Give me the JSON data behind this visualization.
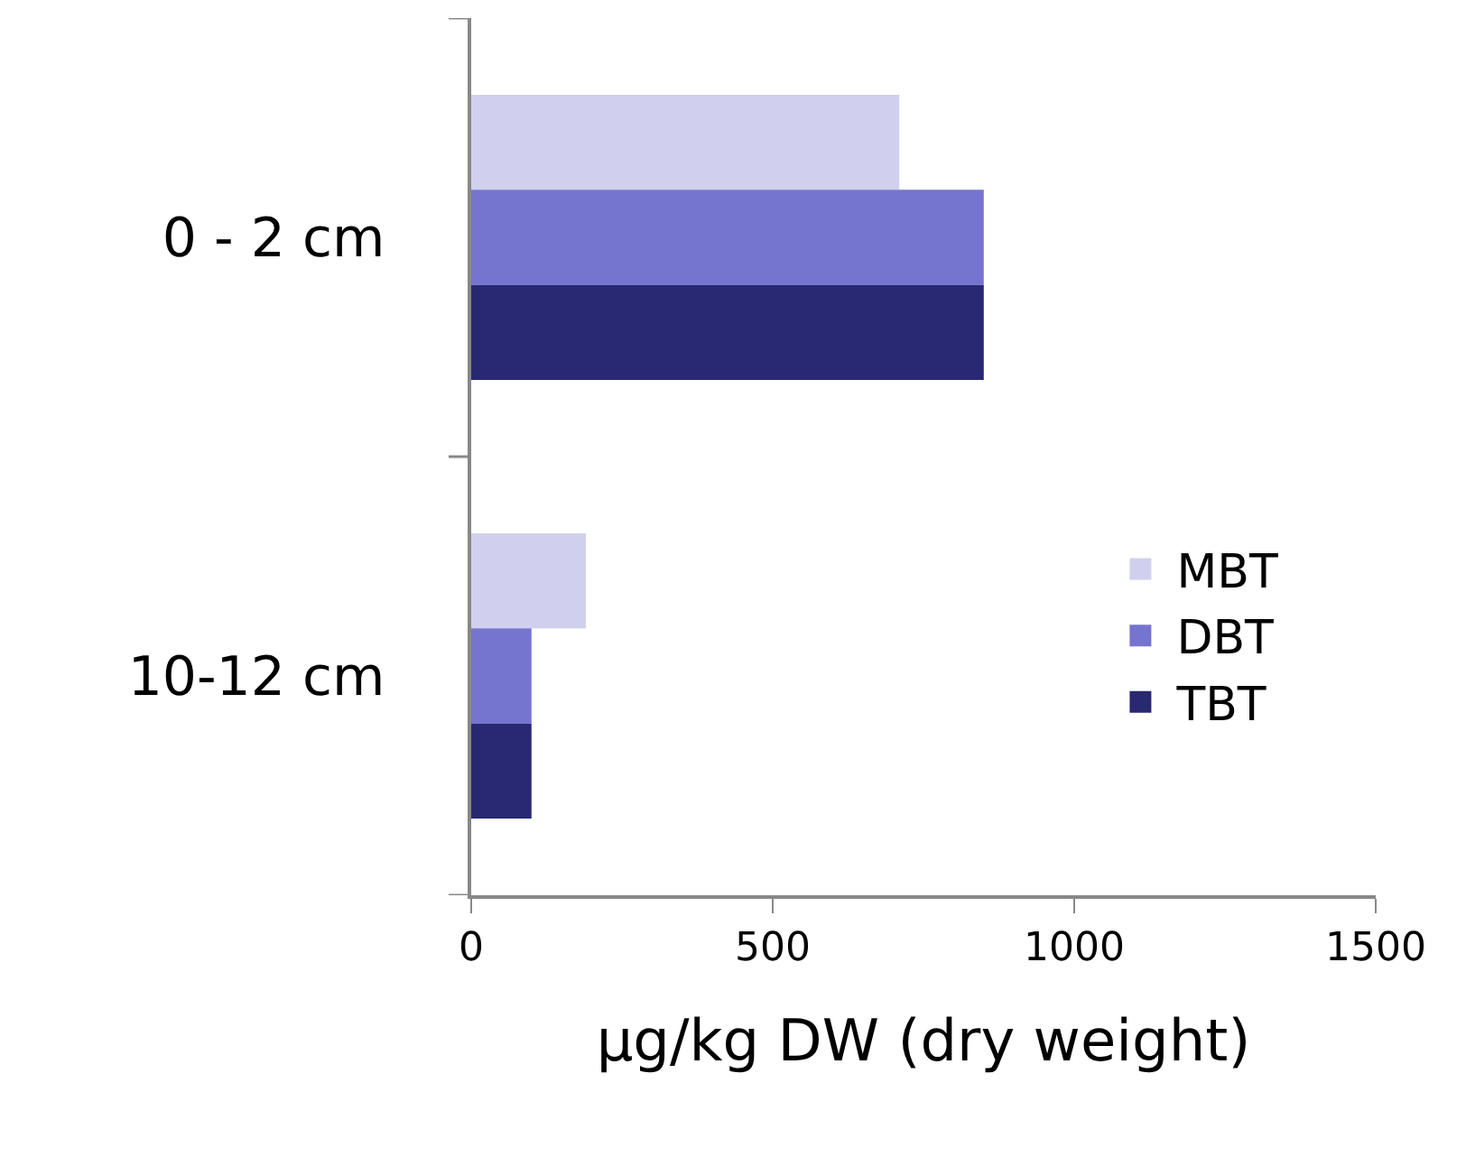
{
  "chart_data": {
    "type": "bar",
    "orientation": "horizontal",
    "xlabel": "µg/kg DW (dry weight)",
    "categories": [
      "0 - 2 cm",
      "10-12 cm"
    ],
    "series": [
      {
        "name": "MBT",
        "color": "#d0d0ee",
        "values": [
          710,
          190
        ]
      },
      {
        "name": "DBT",
        "color": "#7575d0",
        "values": [
          850,
          100
        ]
      },
      {
        "name": "TBT",
        "color": "#282873",
        "values": [
          850,
          100
        ]
      }
    ],
    "xlim": [
      0,
      1500
    ],
    "xticks": [
      0,
      500,
      1000,
      1500
    ],
    "grid": false,
    "legend": "right"
  }
}
